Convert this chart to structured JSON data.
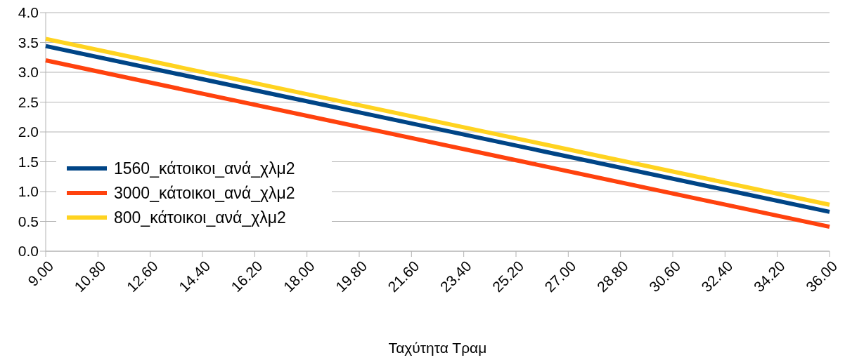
{
  "chart_data": {
    "type": "line",
    "xlabel": "Ταχύτητα Τραμ",
    "x": [
      9,
      36
    ],
    "series": [
      {
        "name": "1560_κάτοικοι_ανά_χλμ2",
        "color": "#004586",
        "values": [
          3.44,
          0.66
        ]
      },
      {
        "name": "3000_κάτοικοι_ανά_χλμ2",
        "color": "#ff420e",
        "values": [
          3.2,
          0.41
        ]
      },
      {
        "name": "800_κάτοικοι_ανά_χλμ2",
        "color": "#ffd320",
        "values": [
          3.56,
          0.78
        ]
      }
    ],
    "xlim": [
      9,
      36
    ],
    "xticks": [
      {
        "value": 9,
        "label": "9.00"
      },
      {
        "value": 10.8,
        "label": "10.80"
      },
      {
        "value": 12.6,
        "label": "12.60"
      },
      {
        "value": 14.4,
        "label": "14.40"
      },
      {
        "value": 16.2,
        "label": "16.20"
      },
      {
        "value": 18,
        "label": "18.00"
      },
      {
        "value": 19.8,
        "label": "19.80"
      },
      {
        "value": 21.6,
        "label": "21.60"
      },
      {
        "value": 23.4,
        "label": "23.40"
      },
      {
        "value": 25.2,
        "label": "25.20"
      },
      {
        "value": 27,
        "label": "27.00"
      },
      {
        "value": 28.8,
        "label": "28.80"
      },
      {
        "value": 30.6,
        "label": "30.60"
      },
      {
        "value": 32.4,
        "label": "32.40"
      },
      {
        "value": 34.2,
        "label": "34.20"
      },
      {
        "value": 36,
        "label": "36.00"
      }
    ],
    "ylim": [
      0,
      4
    ],
    "yticks": [
      {
        "value": 0,
        "label": "0.0"
      },
      {
        "value": 0.5,
        "label": "0.5"
      },
      {
        "value": 1,
        "label": "1.0"
      },
      {
        "value": 1.5,
        "label": "1.5"
      },
      {
        "value": 2,
        "label": "2.0"
      },
      {
        "value": 2.5,
        "label": "2.5"
      },
      {
        "value": 3,
        "label": "3.0"
      },
      {
        "value": 3.5,
        "label": "3.5"
      },
      {
        "value": 4,
        "label": "4.0"
      }
    ],
    "grid": "y",
    "legend": "left",
    "marker": "none",
    "line_style": "solid"
  }
}
